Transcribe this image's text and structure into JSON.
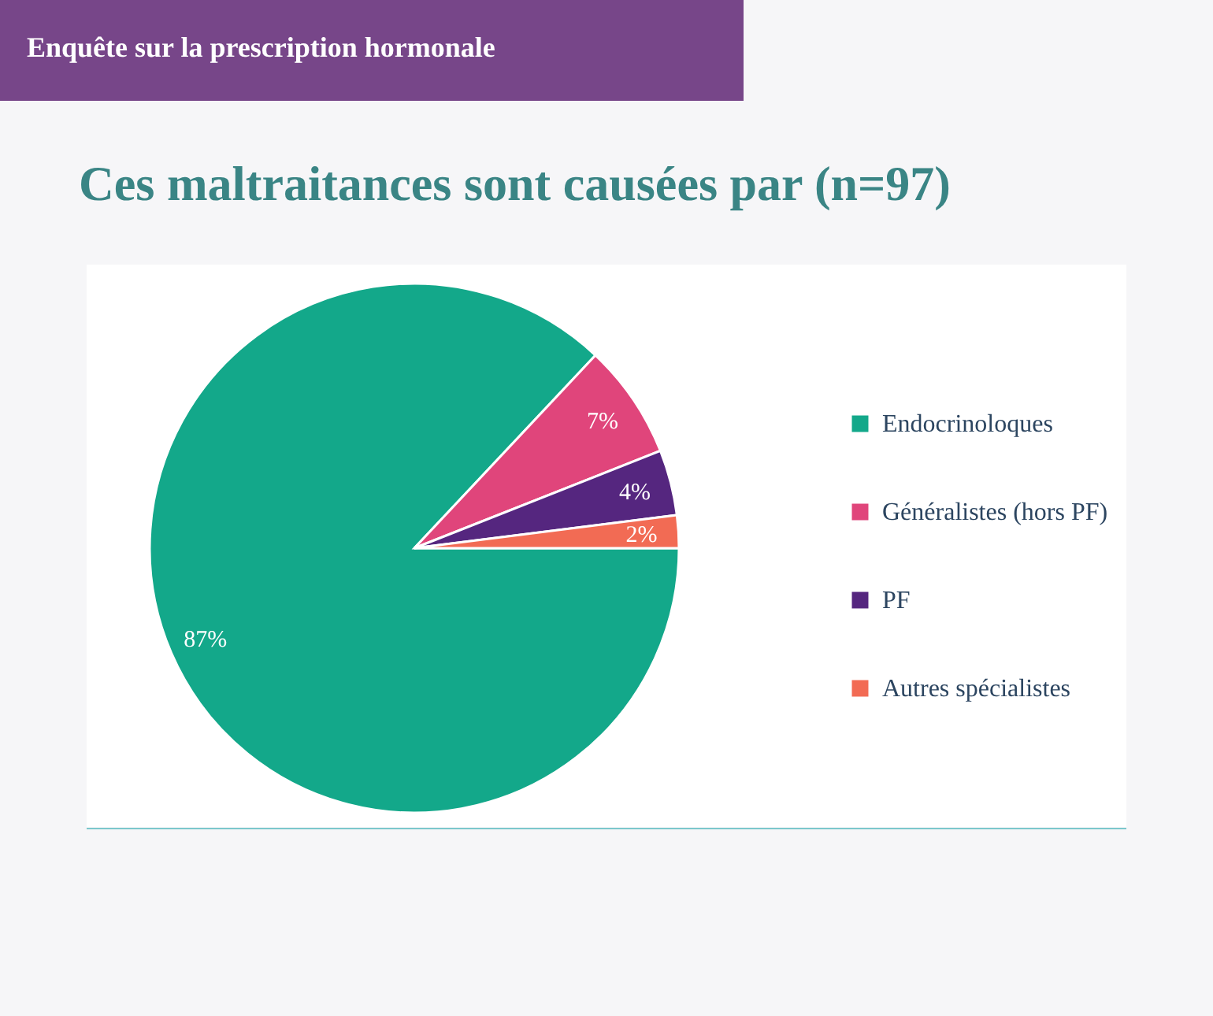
{
  "chart_data": {
    "type": "pie",
    "title": "Ces maltraitances sont causées par (n=97)",
    "subtitle": "Enquête sur la prescription hormonale",
    "categories": [
      "Endocrinoloques",
      "Généralistes (hors PF)",
      "PF",
      "Autres spécialistes"
    ],
    "values": [
      87,
      7,
      4,
      2
    ],
    "colors": [
      "#13a88a",
      "#e0457b",
      "#55267f",
      "#f26b54"
    ],
    "value_labels": [
      "87%",
      "7%",
      "4%",
      "2%"
    ],
    "legend": "right"
  }
}
